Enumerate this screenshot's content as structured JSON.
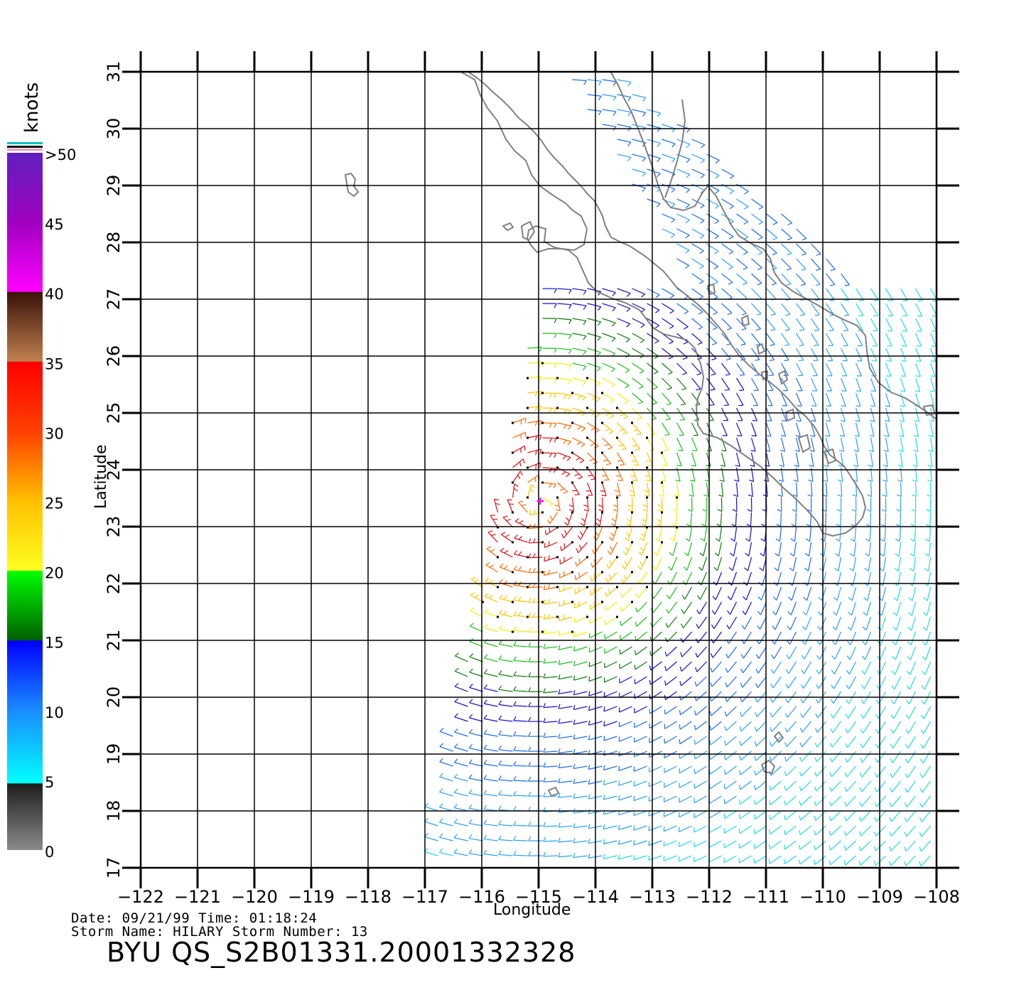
{
  "map": {
    "x_axis": {
      "label": "Longitude",
      "ticks": [
        "−122",
        "−121",
        "−120",
        "−119",
        "−118",
        "−117",
        "−116",
        "−115",
        "−114",
        "−113",
        "−112",
        "−111",
        "−110",
        "−109",
        "−108"
      ],
      "range": [
        -122,
        -107.6
      ]
    },
    "y_axis": {
      "label": "Latitude",
      "ticks": [
        "17",
        "18",
        "19",
        "20",
        "21",
        "22",
        "23",
        "24",
        "25",
        "26",
        "27",
        "28",
        "29",
        "30",
        "31"
      ],
      "range": [
        17,
        31
      ]
    },
    "storm_center": {
      "lon": -114.97,
      "lat": 23.45
    },
    "grid": true
  },
  "legend": {
    "units": "knots",
    "labels": [
      ">50",
      "45",
      "40",
      "35",
      "30",
      "25",
      "20",
      "15",
      "10",
      "5",
      "0"
    ],
    "colors": {
      "gray_low": "#808080",
      "gray_high": "#202020",
      "cyan": "#00ffff",
      "blue_light": "#1a8cff",
      "blue": "#0000ff",
      "green_dark": "#006400",
      "green": "#00ff00",
      "yellow": "#ffff00",
      "orange": "#ff8000",
      "red": "#ff0000",
      "brown_light": "#c08050",
      "brown_dark": "#3a1a0a",
      "magenta": "#ff00ff",
      "purple": "#6020c0"
    }
  },
  "footer": {
    "date_line": "Date: 09/21/99   Time: 01:18:24",
    "storm_line": "Storm Name: HILARY   Storm Number: 13",
    "id_line": "BYU QS_S2B01331.20001332328"
  }
}
